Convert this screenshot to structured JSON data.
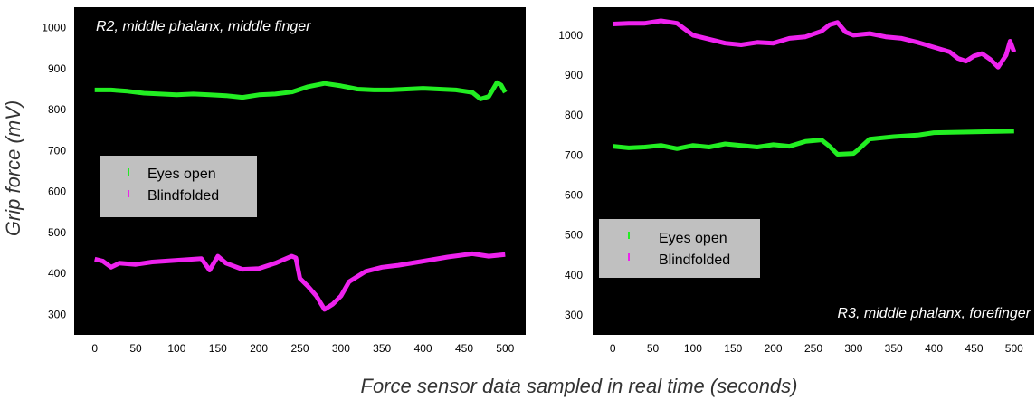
{
  "figure": {
    "ylabel": "Grip force (mV)",
    "xlabel": "Force sensor data sampled in real time (seconds)"
  },
  "chart_data": [
    {
      "type": "line",
      "title": "R2, middle phalanx, middle finger",
      "xlabel": "Force sensor data sampled in real time (seconds)",
      "ylabel": "Grip force (mV)",
      "xlim": [
        -25,
        525
      ],
      "ylim": [
        250,
        1050
      ],
      "xticks": [
        0,
        50,
        100,
        150,
        200,
        250,
        300,
        350,
        400,
        450,
        500
      ],
      "yticks": [
        300,
        400,
        500,
        600,
        700,
        800,
        900,
        1000
      ],
      "grid": false,
      "background": "#000000",
      "legend_position": "middle-left",
      "series": [
        {
          "name": "Eyes open",
          "color": "#22ee22",
          "x": [
            0,
            20,
            40,
            60,
            80,
            100,
            120,
            140,
            160,
            180,
            200,
            220,
            240,
            260,
            280,
            300,
            320,
            340,
            360,
            380,
            400,
            420,
            440,
            460,
            470,
            480,
            490,
            495,
            500
          ],
          "y": [
            848,
            848,
            845,
            840,
            838,
            836,
            838,
            836,
            834,
            830,
            836,
            838,
            843,
            856,
            864,
            858,
            850,
            848,
            848,
            850,
            852,
            850,
            848,
            842,
            826,
            832,
            866,
            860,
            842
          ]
        },
        {
          "name": "Blindfolded",
          "color": "#ee22ee",
          "x": [
            0,
            10,
            20,
            30,
            50,
            70,
            100,
            130,
            140,
            150,
            160,
            180,
            200,
            220,
            240,
            245,
            250,
            260,
            270,
            280,
            290,
            300,
            310,
            330,
            350,
            370,
            400,
            430,
            460,
            480,
            500
          ],
          "y": [
            435,
            430,
            415,
            425,
            422,
            428,
            432,
            436,
            408,
            442,
            425,
            410,
            412,
            425,
            442,
            438,
            388,
            368,
            345,
            312,
            325,
            345,
            380,
            405,
            415,
            420,
            430,
            440,
            448,
            442,
            446
          ]
        }
      ]
    },
    {
      "type": "line",
      "title": "R3, middle phalanx, forefinger",
      "xlabel": "Force sensor data sampled in real time (seconds)",
      "ylabel": "Grip force (mV)",
      "xlim": [
        -25,
        525
      ],
      "ylim": [
        250,
        1070
      ],
      "xticks": [
        0,
        50,
        100,
        150,
        200,
        250,
        300,
        350,
        400,
        450,
        500
      ],
      "yticks": [
        300,
        400,
        500,
        600,
        700,
        800,
        900,
        1000
      ],
      "grid": false,
      "background": "#000000",
      "legend_position": "lower-left",
      "series": [
        {
          "name": "Eyes open",
          "color": "#22ee22",
          "x": [
            0,
            20,
            40,
            60,
            80,
            100,
            120,
            140,
            160,
            180,
            200,
            220,
            240,
            260,
            270,
            280,
            300,
            305,
            320,
            350,
            380,
            400,
            450,
            500
          ],
          "y": [
            722,
            718,
            720,
            724,
            716,
            724,
            720,
            728,
            724,
            720,
            726,
            722,
            734,
            738,
            722,
            702,
            704,
            712,
            740,
            746,
            750,
            756,
            758,
            760
          ]
        },
        {
          "name": "Blindfolded",
          "color": "#ee22ee",
          "x": [
            0,
            20,
            40,
            60,
            80,
            100,
            120,
            140,
            160,
            180,
            200,
            220,
            240,
            260,
            270,
            280,
            290,
            300,
            320,
            340,
            360,
            380,
            400,
            420,
            430,
            440,
            450,
            460,
            470,
            480,
            490,
            495,
            500
          ],
          "y": [
            1028,
            1030,
            1030,
            1036,
            1030,
            1000,
            990,
            980,
            976,
            982,
            980,
            992,
            996,
            1010,
            1026,
            1032,
            1008,
            1000,
            1004,
            996,
            992,
            982,
            970,
            958,
            942,
            935,
            948,
            954,
            940,
            920,
            950,
            985,
            958
          ]
        }
      ]
    }
  ]
}
